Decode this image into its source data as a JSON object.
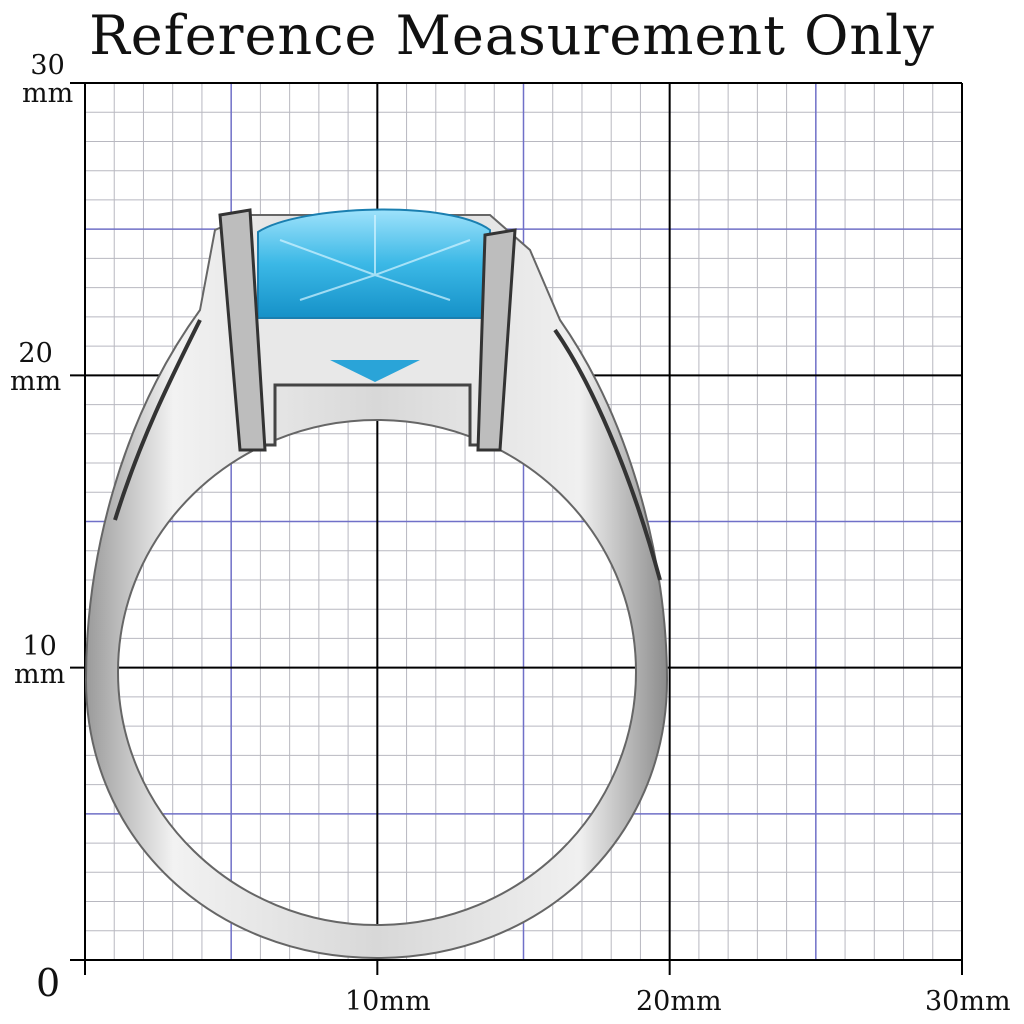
{
  "title": "Reference Measurement Only",
  "y_labels": [
    {
      "value": "30",
      "unit": "mm"
    },
    {
      "value": "20",
      "unit": "mm"
    },
    {
      "value": "10",
      "unit": "mm"
    }
  ],
  "origin_label": "0",
  "x_labels": [
    "10mm",
    "20mm",
    "30mm"
  ],
  "grid": {
    "range_mm": 30,
    "minor_mm": 1,
    "mid_mm": 5,
    "major_mm": 10,
    "minor_color": "#b8b8c0",
    "mid_color": "#7070c8",
    "major_color": "#000000"
  },
  "subject": {
    "gem_color": "#3bb8e6",
    "metal_color": "#c8c8c8"
  }
}
